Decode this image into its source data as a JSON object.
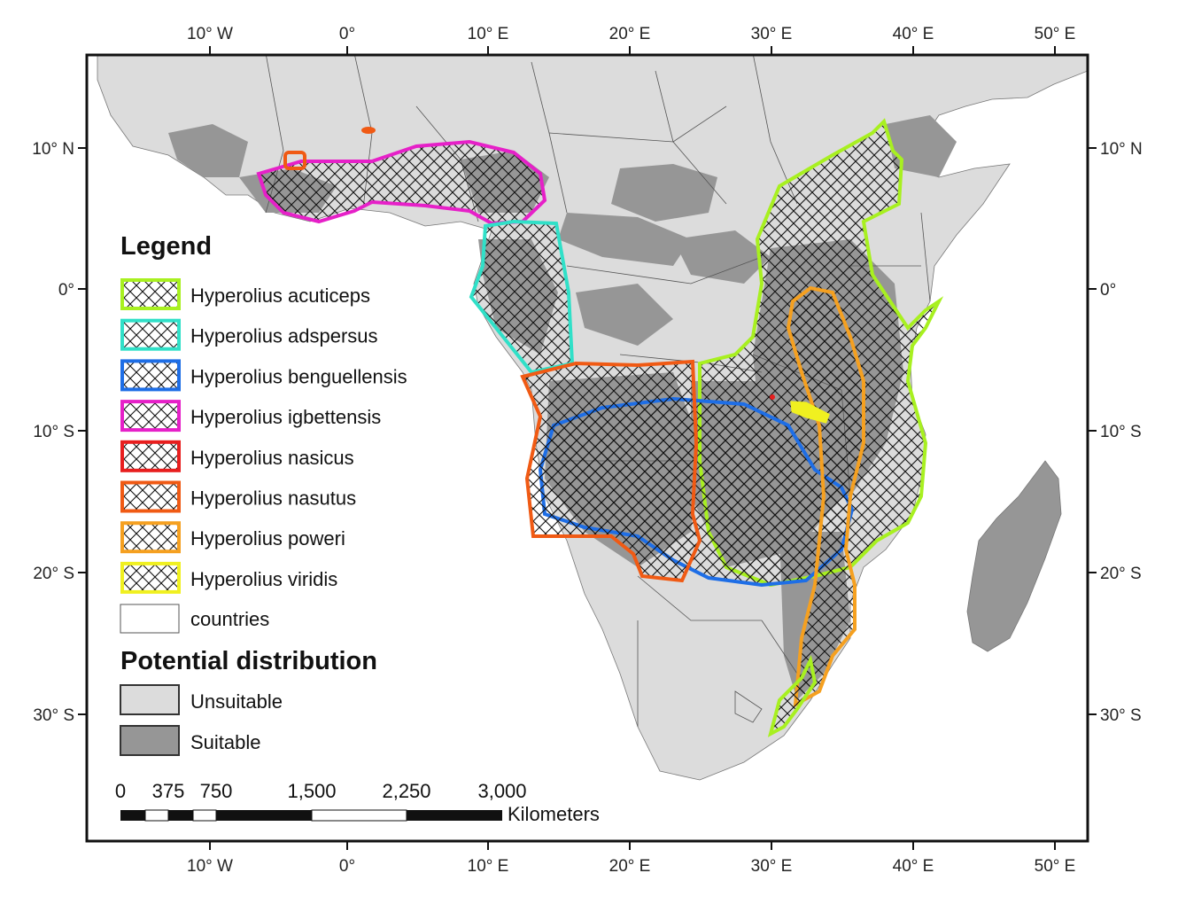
{
  "map": {
    "lon_ticks": [
      "10° W",
      "0°",
      "10° E",
      "20° E",
      "30° E",
      "40° E",
      "50° E"
    ],
    "lat_ticks": [
      "10° N",
      "0°",
      "10° S",
      "20° S",
      "30° S"
    ],
    "lat_ticks_right": [
      "10° N",
      "0°",
      "10° S",
      "20° S",
      "30° S"
    ]
  },
  "legend": {
    "title": "Legend",
    "species": [
      {
        "label": "Hyperolius acuticeps",
        "color": "#a8f020"
      },
      {
        "label": "Hyperolius adspersus",
        "color": "#30e0c8"
      },
      {
        "label": "Hyperolius benguellensis",
        "color": "#1e6ee6"
      },
      {
        "label": "Hyperolius igbettensis",
        "color": "#e620c8"
      },
      {
        "label": "Hyperolius nasicus",
        "color": "#e81e1e"
      },
      {
        "label": "Hyperolius nasutus",
        "color": "#f05a14"
      },
      {
        "label": "Hyperolius poweri",
        "color": "#f5a020"
      },
      {
        "label": "Hyperolius viridis",
        "color": "#f0f020"
      }
    ],
    "countries_label": "countries",
    "distribution_title": "Potential distribution",
    "distribution": [
      {
        "label": "Unsuitable",
        "color": "#dcdcdc"
      },
      {
        "label": "Suitable",
        "color": "#969696"
      }
    ]
  },
  "scale": {
    "labels": [
      "0",
      "375",
      "750",
      "1,500",
      "2,250",
      "3,000"
    ],
    "unit": "Kilometers"
  }
}
